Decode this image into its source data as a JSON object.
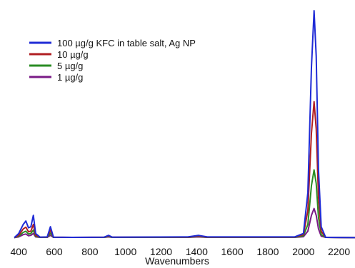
{
  "chart_data": {
    "type": "line",
    "xlabel": "Wavenumbers",
    "ylabel": "",
    "xlim": [
      375,
      2290
    ],
    "ylim": [
      0,
      1.0
    ],
    "x_ticks": [
      400,
      600,
      800,
      1000,
      1200,
      1400,
      1600,
      1800,
      2000,
      2200
    ],
    "grid": false,
    "legend_position": "top-left",
    "series": [
      {
        "name": "100 µg/g KFC in table salt, Ag NP",
        "color": "#1f2bd6",
        "points": [
          [
            375,
            0.002
          ],
          [
            400,
            0.02
          ],
          [
            425,
            0.06
          ],
          [
            440,
            0.075
          ],
          [
            455,
            0.045
          ],
          [
            468,
            0.05
          ],
          [
            482,
            0.1
          ],
          [
            495,
            0.02
          ],
          [
            520,
            0.004
          ],
          [
            560,
            0.005
          ],
          [
            578,
            0.05
          ],
          [
            595,
            0.004
          ],
          [
            700,
            0.003
          ],
          [
            880,
            0.004
          ],
          [
            905,
            0.012
          ],
          [
            925,
            0.004
          ],
          [
            1350,
            0.005
          ],
          [
            1410,
            0.012
          ],
          [
            1460,
            0.005
          ],
          [
            1950,
            0.005
          ],
          [
            2000,
            0.02
          ],
          [
            2025,
            0.2
          ],
          [
            2045,
            0.75
          ],
          [
            2060,
            1.0
          ],
          [
            2072,
            0.8
          ],
          [
            2085,
            0.3
          ],
          [
            2100,
            0.05
          ],
          [
            2125,
            0.003
          ],
          [
            2290,
            0.002
          ]
        ]
      },
      {
        "name": "10 µg/g",
        "color": "#b01e22",
        "points": [
          [
            375,
            0.002
          ],
          [
            400,
            0.012
          ],
          [
            425,
            0.04
          ],
          [
            440,
            0.048
          ],
          [
            455,
            0.028
          ],
          [
            468,
            0.03
          ],
          [
            482,
            0.06
          ],
          [
            495,
            0.012
          ],
          [
            520,
            0.004
          ],
          [
            560,
            0.004
          ],
          [
            578,
            0.035
          ],
          [
            595,
            0.004
          ],
          [
            700,
            0.003
          ],
          [
            880,
            0.004
          ],
          [
            905,
            0.009
          ],
          [
            925,
            0.004
          ],
          [
            1350,
            0.004
          ],
          [
            1410,
            0.009
          ],
          [
            1460,
            0.004
          ],
          [
            1950,
            0.004
          ],
          [
            2000,
            0.015
          ],
          [
            2025,
            0.12
          ],
          [
            2045,
            0.46
          ],
          [
            2060,
            0.6
          ],
          [
            2072,
            0.48
          ],
          [
            2085,
            0.18
          ],
          [
            2100,
            0.03
          ],
          [
            2125,
            0.003
          ],
          [
            2290,
            0.002
          ]
        ]
      },
      {
        "name": "5 µg/g",
        "color": "#2a8c23",
        "points": [
          [
            375,
            0.002
          ],
          [
            400,
            0.008
          ],
          [
            425,
            0.025
          ],
          [
            440,
            0.03
          ],
          [
            455,
            0.018
          ],
          [
            468,
            0.02
          ],
          [
            482,
            0.035
          ],
          [
            495,
            0.008
          ],
          [
            520,
            0.003
          ],
          [
            560,
            0.003
          ],
          [
            578,
            0.022
          ],
          [
            595,
            0.003
          ],
          [
            700,
            0.003
          ],
          [
            880,
            0.003
          ],
          [
            905,
            0.007
          ],
          [
            925,
            0.003
          ],
          [
            1350,
            0.003
          ],
          [
            1410,
            0.007
          ],
          [
            1460,
            0.003
          ],
          [
            1950,
            0.003
          ],
          [
            2000,
            0.01
          ],
          [
            2025,
            0.06
          ],
          [
            2045,
            0.23
          ],
          [
            2060,
            0.3
          ],
          [
            2072,
            0.24
          ],
          [
            2085,
            0.09
          ],
          [
            2100,
            0.015
          ],
          [
            2125,
            0.003
          ],
          [
            2290,
            0.002
          ]
        ]
      },
      {
        "name": "1 µg/g",
        "color": "#7a1a86",
        "points": [
          [
            375,
            0.002
          ],
          [
            400,
            0.005
          ],
          [
            425,
            0.015
          ],
          [
            440,
            0.018
          ],
          [
            455,
            0.01
          ],
          [
            468,
            0.012
          ],
          [
            482,
            0.02
          ],
          [
            495,
            0.005
          ],
          [
            520,
            0.003
          ],
          [
            560,
            0.003
          ],
          [
            578,
            0.012
          ],
          [
            595,
            0.003
          ],
          [
            700,
            0.003
          ],
          [
            880,
            0.003
          ],
          [
            905,
            0.005
          ],
          [
            925,
            0.003
          ],
          [
            1350,
            0.003
          ],
          [
            1410,
            0.005
          ],
          [
            1460,
            0.003
          ],
          [
            1950,
            0.003
          ],
          [
            2000,
            0.006
          ],
          [
            2025,
            0.03
          ],
          [
            2045,
            0.1
          ],
          [
            2060,
            0.13
          ],
          [
            2072,
            0.1
          ],
          [
            2085,
            0.04
          ],
          [
            2100,
            0.008
          ],
          [
            2125,
            0.003
          ],
          [
            2290,
            0.002
          ]
        ]
      }
    ]
  }
}
